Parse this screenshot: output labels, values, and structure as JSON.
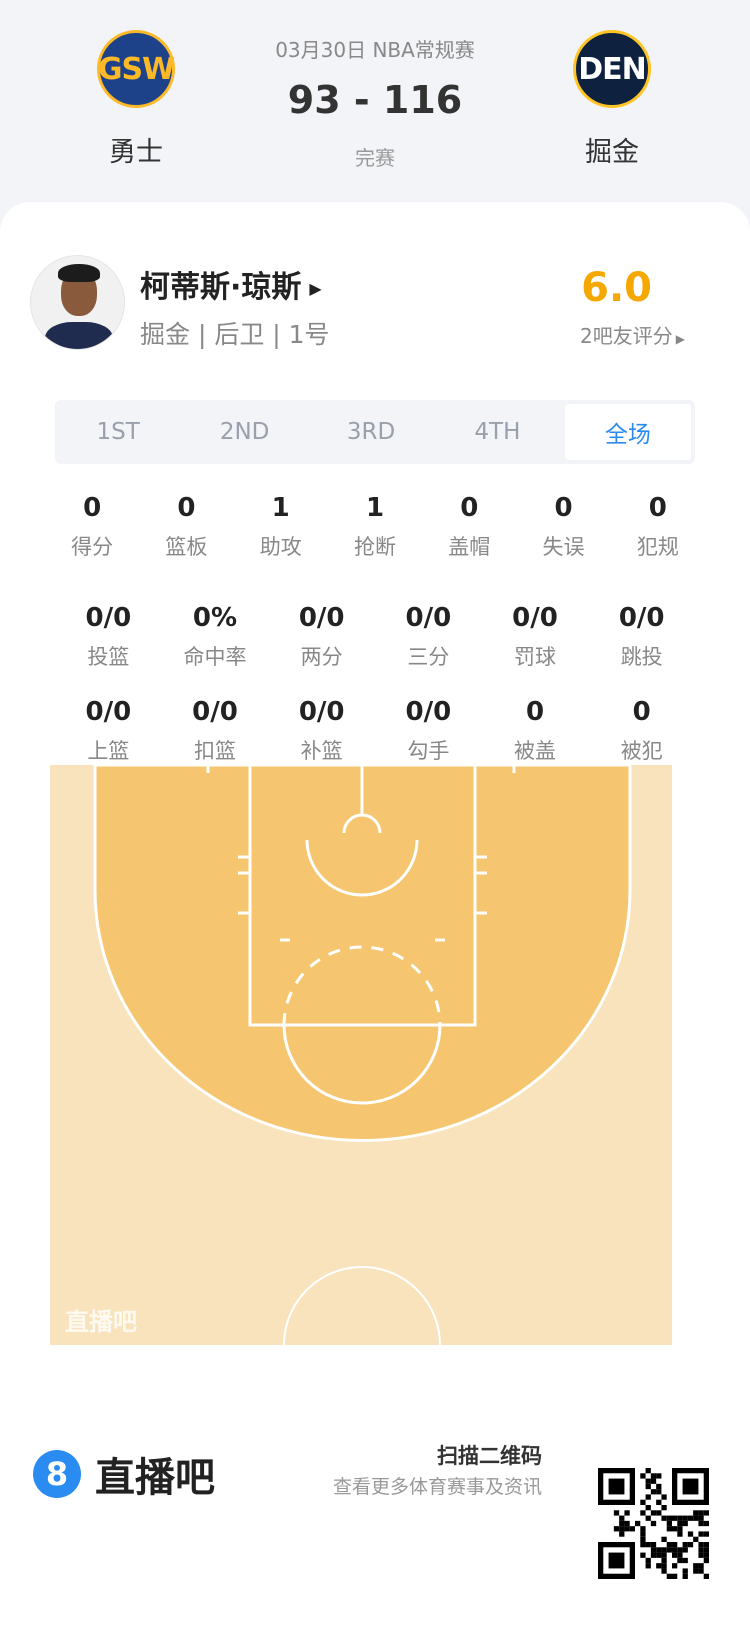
{
  "match": {
    "date_league": "03月30日 NBA常规赛",
    "score": "93 - 116",
    "status": "完赛",
    "home": {
      "abbr": "GSW",
      "name": "勇士",
      "color": "#1d428a",
      "accent": "#fdb927"
    },
    "away": {
      "abbr": "DEN",
      "name": "掘金",
      "color": "#0e2240",
      "accent": "#fec524"
    }
  },
  "player": {
    "name": "柯蒂斯·琼斯",
    "info": "掘金 | 后卫 | 1号",
    "rating": "6.0",
    "rating_label": "2吧友评分",
    "rating_color": "#f5a800"
  },
  "tabs": [
    {
      "label": "1ST"
    },
    {
      "label": "2ND"
    },
    {
      "label": "3RD"
    },
    {
      "label": "4TH"
    },
    {
      "label": "全场",
      "active": true
    }
  ],
  "stats_row1": [
    {
      "v": "0",
      "l": "得分"
    },
    {
      "v": "0",
      "l": "篮板"
    },
    {
      "v": "1",
      "l": "助攻"
    },
    {
      "v": "1",
      "l": "抢断"
    },
    {
      "v": "0",
      "l": "盖帽"
    },
    {
      "v": "0",
      "l": "失误"
    },
    {
      "v": "0",
      "l": "犯规"
    }
  ],
  "stats_row2": [
    {
      "v": "0/0",
      "l": "投篮"
    },
    {
      "v": "0%",
      "l": "命中率"
    },
    {
      "v": "0/0",
      "l": "两分"
    },
    {
      "v": "0/0",
      "l": "三分"
    },
    {
      "v": "0/0",
      "l": "罚球"
    },
    {
      "v": "0/0",
      "l": "跳投"
    }
  ],
  "stats_row3": [
    {
      "v": "0/0",
      "l": "上篮"
    },
    {
      "v": "0/0",
      "l": "扣篮"
    },
    {
      "v": "0/0",
      "l": "补篮"
    },
    {
      "v": "0/0",
      "l": "勾手"
    },
    {
      "v": "0",
      "l": "被盖"
    },
    {
      "v": "0",
      "l": "被犯"
    }
  ],
  "court": {
    "watermark": "直播吧"
  },
  "footer": {
    "brand_badge": "8",
    "brand": "直播吧",
    "qr_title": "扫描二维码",
    "qr_sub": "查看更多体育赛事及资讯"
  }
}
